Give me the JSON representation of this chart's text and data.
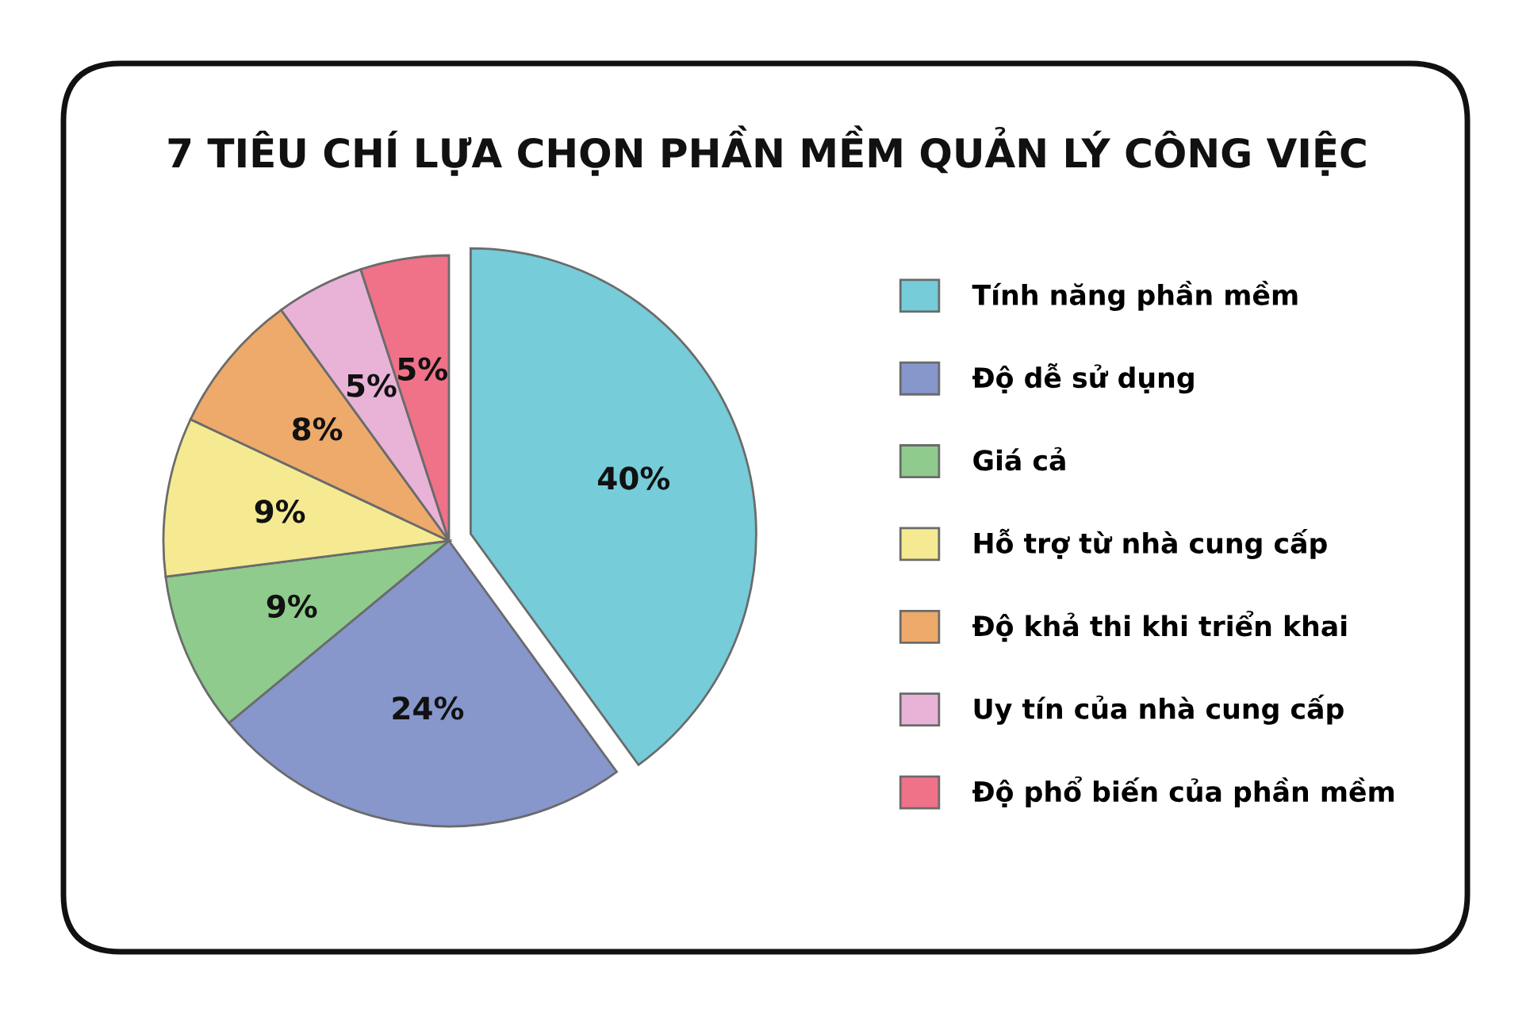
{
  "chart_data": {
    "type": "pie",
    "title": "7 TIÊU CHÍ LỰA CHỌN PHẦN MỀM QUẢN LÝ CÔNG VIỆC",
    "categories": [
      "Tính năng phần mềm",
      "Độ dễ sử dụng",
      "Giá cả",
      "Hỗ trợ từ nhà cung cấp",
      "Độ khả thi khi triển khai",
      "Uy tín của nhà cung cấp",
      "Độ phổ biến của phần mềm"
    ],
    "values": [
      40,
      24,
      9,
      9,
      8,
      5,
      5
    ],
    "value_labels": [
      "40%",
      "24%",
      "9%",
      "9%",
      "8%",
      "5%",
      "5%"
    ],
    "colors": [
      "#76ccd9",
      "#8797cc",
      "#8ecb8c",
      "#f5ea91",
      "#eeaa6a",
      "#e8b3d6",
      "#ef7288"
    ],
    "legend": "right"
  }
}
